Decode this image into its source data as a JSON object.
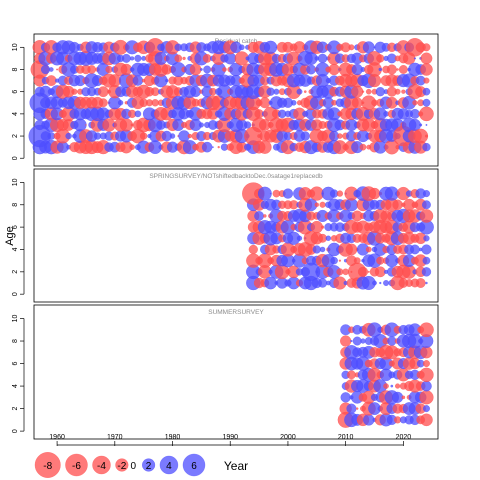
{
  "chart_data": {
    "type": "scatter",
    "subtype": "bubble",
    "ylabel": "Age",
    "xlabel": "Year",
    "x_ticks": [
      1960,
      1970,
      1980,
      1990,
      2000,
      2010,
      2020
    ],
    "y_ticks": [
      0,
      2,
      4,
      6,
      8,
      10
    ],
    "xlim": [
      1956,
      2026
    ],
    "colors": {
      "positive": "#4d4dff",
      "negative": "#ff4d4d",
      "frame": "#000000",
      "panel_title": "#8c8c8c"
    },
    "panels": [
      {
        "title": "Residual catch",
        "ylim": [
          -0.7,
          11.2
        ],
        "year_range": [
          1957,
          2024
        ],
        "ages": [
          1,
          2,
          3,
          4,
          5,
          6,
          7,
          8,
          9,
          10
        ],
        "highlights": [
          {
            "year": 1957,
            "age": 2,
            "value": 6
          },
          {
            "year": 1957,
            "age": 5,
            "value": 5
          },
          {
            "year": 1957,
            "age": 8,
            "value": -4
          },
          {
            "year": 1977,
            "age": 10,
            "value": -4
          },
          {
            "year": 1994,
            "age": 2,
            "value": -4
          },
          {
            "year": 2020,
            "age": 2,
            "value": -5
          },
          {
            "year": 2022,
            "age": 10,
            "value": -4
          }
        ]
      },
      {
        "title": "SPRINGSURVEY/NOTshiftedbacktoDec.0satage1replacedb",
        "ylim": [
          -0.7,
          11.2
        ],
        "year_range": [
          1994,
          2024
        ],
        "ages": [
          1,
          2,
          3,
          4,
          5,
          6,
          7,
          8,
          9
        ],
        "highlights": [
          {
            "year": 1994,
            "age": 9,
            "value": -6
          },
          {
            "year": 2004,
            "age": 2,
            "value": 4
          },
          {
            "year": 2012,
            "age": 2,
            "value": -4
          }
        ]
      },
      {
        "title": "SUMMERSURVEY",
        "ylim": [
          -0.7,
          11.2
        ],
        "year_range": [
          2010,
          2024
        ],
        "ages": [
          1,
          2,
          3,
          4,
          5,
          6,
          7,
          8,
          9
        ],
        "highlights": [
          {
            "year": 2010,
            "age": 1,
            "value": -3
          }
        ]
      }
    ],
    "legend": {
      "values": [
        -8,
        -6,
        -4,
        -2,
        0,
        2,
        4,
        6
      ],
      "labels": [
        "-8",
        "-6",
        "-4",
        "-2",
        "0",
        "2",
        "4",
        "6"
      ]
    }
  }
}
